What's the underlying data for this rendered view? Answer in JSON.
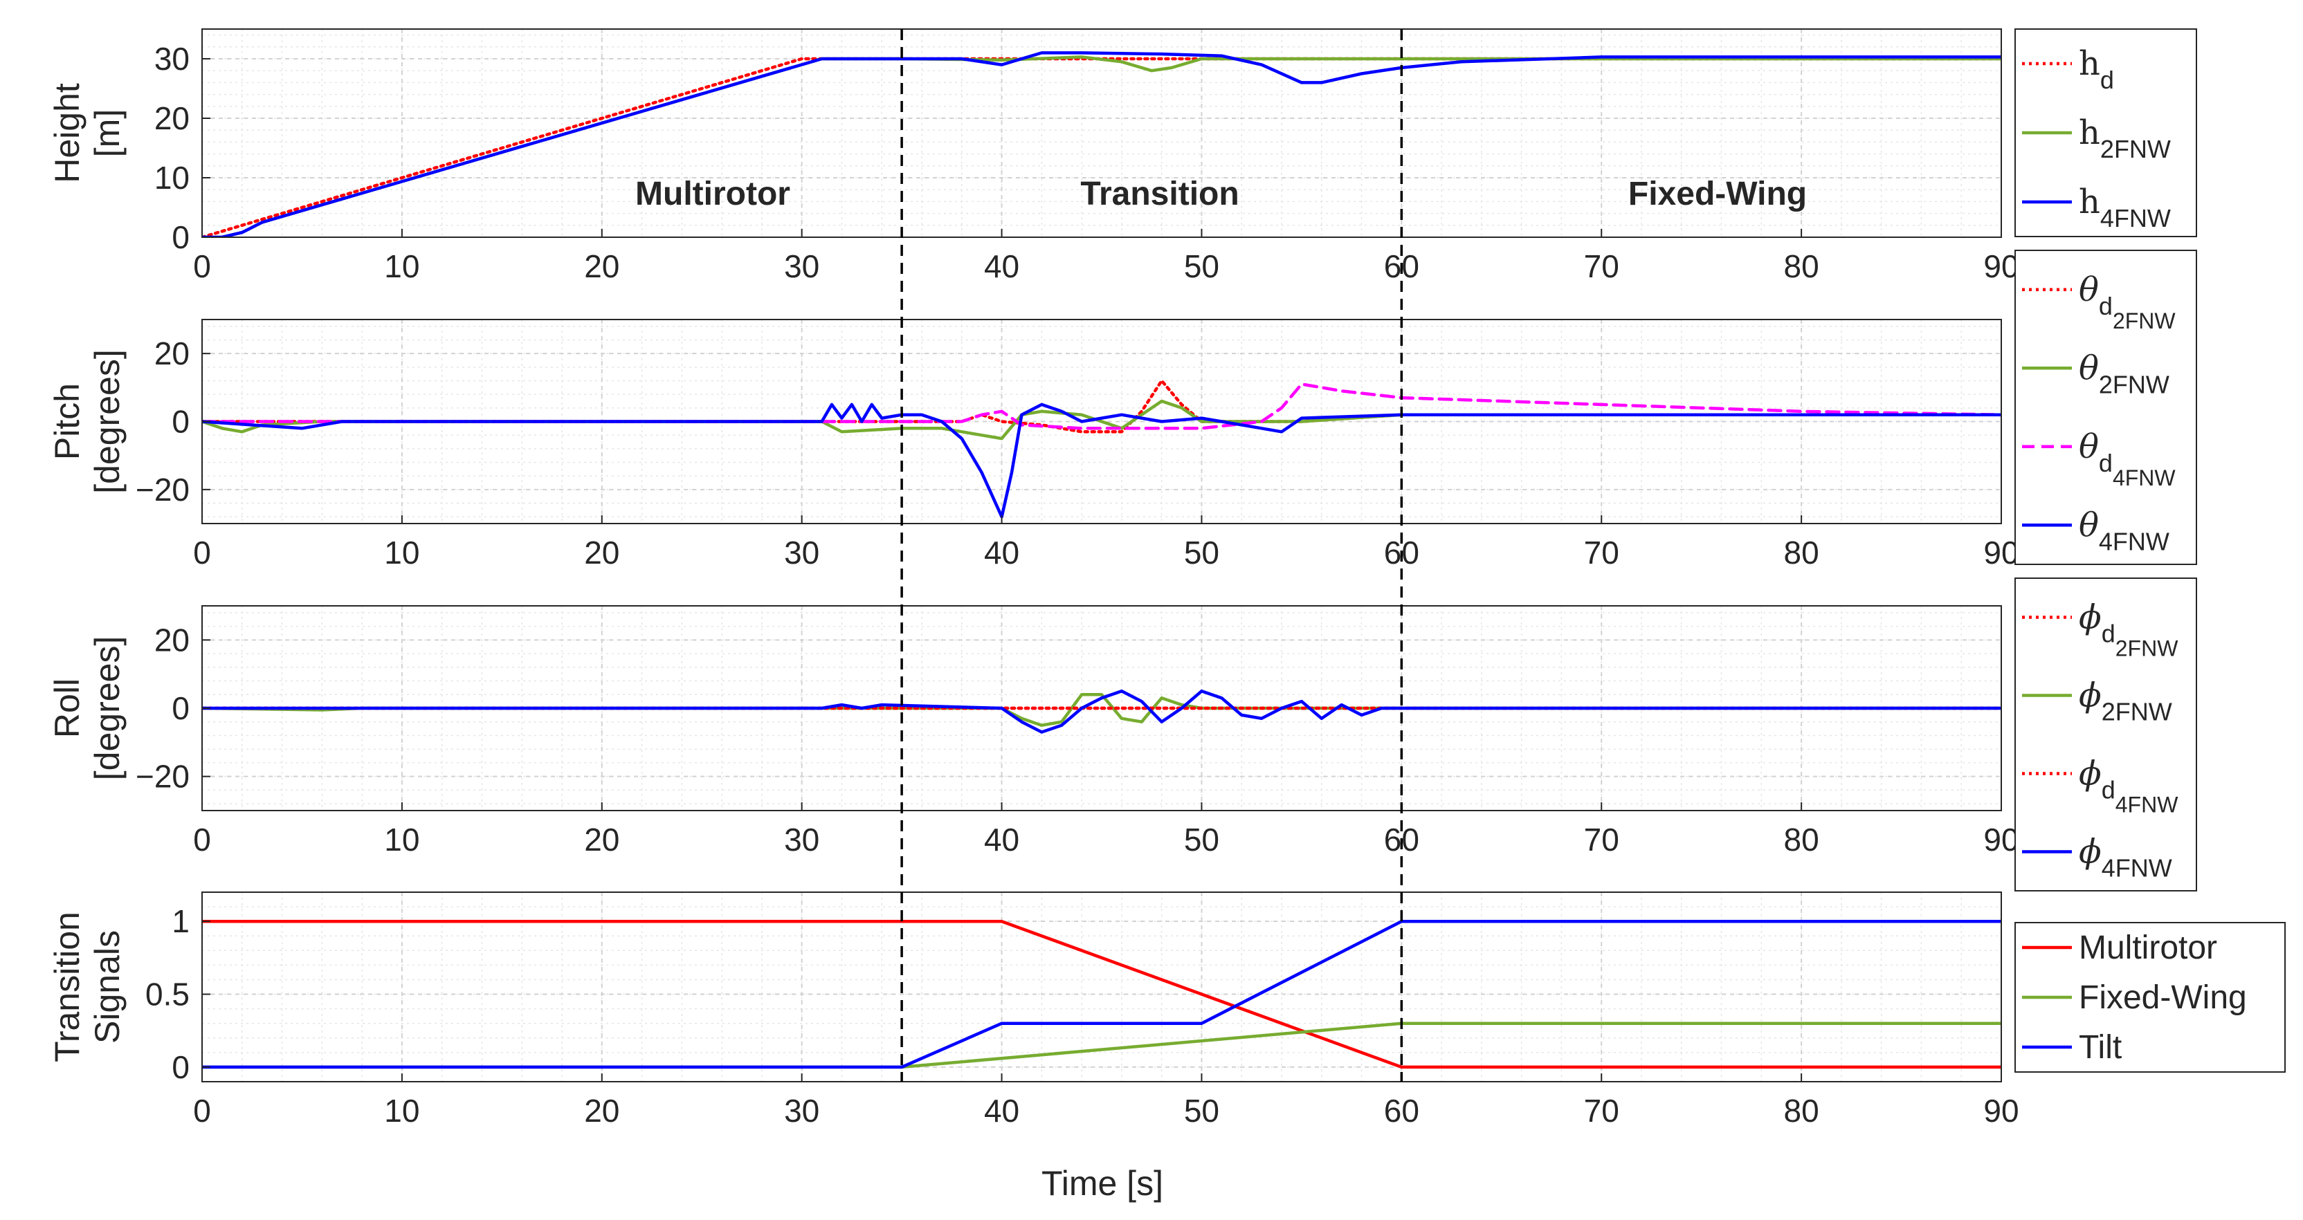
{
  "xlabel": "Time [s]",
  "phase_labels": [
    "Multirotor",
    "Transition",
    "Fixed-Wing"
  ],
  "phase_lines_at": [
    35,
    60
  ],
  "colors": {
    "red": "#ff0000",
    "green": "#77ac30",
    "blue": "#0000ff",
    "magenta": "#ff00ff"
  },
  "chart_data": [
    {
      "type": "line",
      "name": "height",
      "ylabel": [
        "Height",
        "[m]"
      ],
      "xlim": [
        0,
        90
      ],
      "ylim": [
        0,
        35
      ],
      "xticks": [
        0,
        10,
        20,
        30,
        40,
        50,
        60,
        70,
        80,
        90
      ],
      "yticks": [
        0,
        10,
        20,
        30
      ],
      "grid": true,
      "legend": {
        "position": "right",
        "entries": [
          {
            "base": "h",
            "sub": "d",
            "greek": false,
            "color": "#ff0000",
            "style": "dotted"
          },
          {
            "base": "h",
            "sub": "2FNW",
            "greek": false,
            "color": "#77ac30",
            "style": "solid"
          },
          {
            "base": "h",
            "sub": "4FNW",
            "greek": false,
            "color": "#0000ff",
            "style": "solid"
          }
        ]
      },
      "series": [
        {
          "name": "h_d",
          "color": "#ff0000",
          "style": "dotted",
          "points": [
            [
              0,
              0
            ],
            [
              30,
              30
            ],
            [
              40,
              30
            ],
            [
              45,
              30
            ],
            [
              50,
              30
            ],
            [
              55,
              30
            ],
            [
              60,
              30
            ],
            [
              90,
              30
            ]
          ]
        },
        {
          "name": "h_2FNW",
          "color": "#77ac30",
          "style": "solid",
          "points": [
            [
              0,
              0
            ],
            [
              1,
              0
            ],
            [
              2,
              0.8
            ],
            [
              3,
              2.5
            ],
            [
              31,
              30
            ],
            [
              35,
              30
            ],
            [
              40,
              29.8
            ],
            [
              44,
              30.3
            ],
            [
              46,
              29.5
            ],
            [
              47.5,
              28
            ],
            [
              48.5,
              28.5
            ],
            [
              50,
              30
            ],
            [
              52,
              30
            ],
            [
              90,
              30
            ]
          ]
        },
        {
          "name": "h_4FNW",
          "color": "#0000ff",
          "style": "solid",
          "points": [
            [
              0,
              0
            ],
            [
              1,
              0
            ],
            [
              2,
              0.8
            ],
            [
              3,
              2.5
            ],
            [
              31,
              30
            ],
            [
              35,
              30
            ],
            [
              38,
              30
            ],
            [
              40,
              29
            ],
            [
              41,
              30
            ],
            [
              42,
              31
            ],
            [
              44,
              31
            ],
            [
              48,
              30.8
            ],
            [
              51,
              30.5
            ],
            [
              53,
              29
            ],
            [
              55,
              26
            ],
            [
              56,
              26
            ],
            [
              58,
              27.5
            ],
            [
              60,
              28.5
            ],
            [
              63,
              29.5
            ],
            [
              70,
              30.3
            ],
            [
              90,
              30.3
            ]
          ]
        }
      ]
    },
    {
      "type": "line",
      "name": "pitch",
      "ylabel": [
        "Pitch",
        "[degrees]"
      ],
      "xlim": [
        0,
        90
      ],
      "ylim": [
        -30,
        30
      ],
      "xticks": [
        0,
        10,
        20,
        30,
        40,
        50,
        60,
        70,
        80,
        90
      ],
      "yticks": [
        -20,
        0,
        20
      ],
      "grid": true,
      "legend": {
        "position": "right",
        "entries": [
          {
            "base": "θ",
            "sub": "d",
            "sub2": "2FNW",
            "greek": true,
            "color": "#ff0000",
            "style": "dotted"
          },
          {
            "base": "θ",
            "sub": "2FNW",
            "greek": true,
            "color": "#77ac30",
            "style": "solid"
          },
          {
            "base": "θ",
            "sub": "d",
            "sub2": "4FNW",
            "greek": true,
            "color": "#ff00ff",
            "style": "dashed"
          },
          {
            "base": "θ",
            "sub": "4FNW",
            "greek": true,
            "color": "#0000ff",
            "style": "solid"
          }
        ]
      },
      "series": [
        {
          "name": "theta_d_2FNW",
          "color": "#ff0000",
          "style": "dotted",
          "points": [
            [
              0,
              0
            ],
            [
              35,
              0
            ],
            [
              38,
              0
            ],
            [
              39,
              2
            ],
            [
              40,
              0
            ],
            [
              42,
              -1
            ],
            [
              44,
              -3
            ],
            [
              46,
              -3
            ],
            [
              47,
              3
            ],
            [
              48,
              12
            ],
            [
              49,
              5
            ],
            [
              50,
              0
            ],
            [
              55,
              0
            ],
            [
              60,
              2
            ],
            [
              90,
              2
            ]
          ]
        },
        {
          "name": "theta_2FNW",
          "color": "#77ac30",
          "style": "solid",
          "points": [
            [
              0,
              0
            ],
            [
              1,
              -2
            ],
            [
              2,
              -3
            ],
            [
              3,
              -1
            ],
            [
              6,
              0
            ],
            [
              31,
              0
            ],
            [
              32,
              -3
            ],
            [
              35,
              -2
            ],
            [
              37,
              -2
            ],
            [
              39,
              -4
            ],
            [
              40,
              -5
            ],
            [
              41,
              2
            ],
            [
              42,
              3
            ],
            [
              44,
              2
            ],
            [
              46,
              -2
            ],
            [
              47,
              2
            ],
            [
              48,
              6
            ],
            [
              49,
              4
            ],
            [
              50,
              0
            ],
            [
              55,
              0
            ],
            [
              60,
              2
            ],
            [
              90,
              2
            ]
          ]
        },
        {
          "name": "theta_d_4FNW",
          "color": "#ff00ff",
          "style": "dashed",
          "points": [
            [
              0,
              0
            ],
            [
              35,
              0
            ],
            [
              38,
              0
            ],
            [
              39,
              2
            ],
            [
              40,
              3
            ],
            [
              41,
              -1
            ],
            [
              44,
              -2
            ],
            [
              50,
              -2
            ],
            [
              53,
              0
            ],
            [
              54,
              4
            ],
            [
              55,
              11
            ],
            [
              57,
              9
            ],
            [
              60,
              7
            ],
            [
              70,
              5
            ],
            [
              80,
              3
            ],
            [
              90,
              2
            ]
          ]
        },
        {
          "name": "theta_4FNW",
          "color": "#0000ff",
          "style": "solid",
          "points": [
            [
              0,
              0
            ],
            [
              5,
              -2
            ],
            [
              7,
              0
            ],
            [
              31,
              0
            ],
            [
              31.5,
              5
            ],
            [
              32,
              1
            ],
            [
              32.5,
              5
            ],
            [
              33,
              0
            ],
            [
              33.5,
              5
            ],
            [
              34,
              1
            ],
            [
              35,
              2
            ],
            [
              36,
              2
            ],
            [
              37,
              0
            ],
            [
              38,
              -5
            ],
            [
              39,
              -15
            ],
            [
              40,
              -28
            ],
            [
              40.5,
              -15
            ],
            [
              41,
              2
            ],
            [
              42,
              5
            ],
            [
              43,
              3
            ],
            [
              44,
              0
            ],
            [
              46,
              2
            ],
            [
              48,
              0
            ],
            [
              50,
              1
            ],
            [
              53,
              -2
            ],
            [
              54,
              -3
            ],
            [
              55,
              1
            ],
            [
              60,
              2
            ],
            [
              90,
              2
            ]
          ]
        }
      ]
    },
    {
      "type": "line",
      "name": "roll",
      "ylabel": [
        "Roll",
        "[degrees]"
      ],
      "xlim": [
        0,
        90
      ],
      "ylim": [
        -30,
        30
      ],
      "xticks": [
        0,
        10,
        20,
        30,
        40,
        50,
        60,
        70,
        80,
        90
      ],
      "yticks": [
        -20,
        0,
        20
      ],
      "grid": true,
      "legend": {
        "position": "right",
        "entries": [
          {
            "base": "ϕ",
            "sub": "d",
            "sub2": "2FNW",
            "greek": true,
            "color": "#ff0000",
            "style": "dotted"
          },
          {
            "base": "ϕ",
            "sub": "2FNW",
            "greek": true,
            "color": "#77ac30",
            "style": "solid"
          },
          {
            "base": "ϕ",
            "sub": "d",
            "sub2": "4FNW",
            "greek": true,
            "color": "#ff0000",
            "style": "dotted"
          },
          {
            "base": "ϕ",
            "sub": "4FNW",
            "greek": true,
            "color": "#0000ff",
            "style": "solid"
          }
        ]
      },
      "series": [
        {
          "name": "phi_d_2FNW",
          "color": "#ff0000",
          "style": "dotted",
          "points": [
            [
              0,
              0
            ],
            [
              90,
              0
            ]
          ]
        },
        {
          "name": "phi_2FNW",
          "color": "#77ac30",
          "style": "solid",
          "points": [
            [
              0,
              0
            ],
            [
              6,
              -0.5
            ],
            [
              8,
              0
            ],
            [
              35,
              0
            ],
            [
              40,
              0
            ],
            [
              41,
              -3
            ],
            [
              42,
              -5
            ],
            [
              43,
              -4
            ],
            [
              44,
              4
            ],
            [
              45,
              4
            ],
            [
              46,
              -3
            ],
            [
              47,
              -4
            ],
            [
              48,
              3
            ],
            [
              49,
              1
            ],
            [
              50,
              0
            ],
            [
              90,
              0
            ]
          ]
        },
        {
          "name": "phi_d_4FNW",
          "color": "#ff0000",
          "style": "dotted",
          "points": [
            [
              0,
              0
            ],
            [
              90,
              0
            ]
          ]
        },
        {
          "name": "phi_4FNW",
          "color": "#0000ff",
          "style": "solid",
          "points": [
            [
              0,
              0
            ],
            [
              31,
              0
            ],
            [
              32,
              1
            ],
            [
              33,
              0
            ],
            [
              34,
              1
            ],
            [
              40,
              0
            ],
            [
              41,
              -4
            ],
            [
              42,
              -7
            ],
            [
              43,
              -5
            ],
            [
              44,
              0
            ],
            [
              45,
              3
            ],
            [
              46,
              5
            ],
            [
              47,
              2
            ],
            [
              48,
              -4
            ],
            [
              49,
              0
            ],
            [
              50,
              5
            ],
            [
              51,
              3
            ],
            [
              52,
              -2
            ],
            [
              53,
              -3
            ],
            [
              54,
              0
            ],
            [
              55,
              2
            ],
            [
              56,
              -3
            ],
            [
              57,
              1
            ],
            [
              58,
              -2
            ],
            [
              59,
              0
            ],
            [
              60,
              0
            ],
            [
              90,
              0
            ]
          ]
        }
      ]
    },
    {
      "type": "line",
      "name": "transition",
      "ylabel": [
        "Transition",
        "Signals"
      ],
      "xlim": [
        0,
        90
      ],
      "ylim": [
        -0.1,
        1.2
      ],
      "xticks": [
        0,
        10,
        20,
        30,
        40,
        50,
        60,
        70,
        80,
        90
      ],
      "yticks": [
        0,
        0.5,
        1
      ],
      "grid": true,
      "legend": {
        "position": "right",
        "entries": [
          {
            "label": "Multirotor",
            "color": "#ff0000",
            "style": "solid"
          },
          {
            "label": "Fixed-Wing",
            "color": "#77ac30",
            "style": "solid"
          },
          {
            "label": "Tilt",
            "color": "#0000ff",
            "style": "solid"
          }
        ]
      },
      "series": [
        {
          "name": "Multirotor",
          "color": "#ff0000",
          "style": "solid",
          "points": [
            [
              0,
              1
            ],
            [
              40,
              1
            ],
            [
              60,
              0
            ],
            [
              90,
              0
            ]
          ]
        },
        {
          "name": "Fixed-Wing",
          "color": "#77ac30",
          "style": "solid",
          "points": [
            [
              0,
              0
            ],
            [
              35,
              0
            ],
            [
              60,
              0.3
            ],
            [
              90,
              0.3
            ]
          ]
        },
        {
          "name": "Tilt",
          "color": "#0000ff",
          "style": "solid",
          "points": [
            [
              0,
              0
            ],
            [
              35,
              0
            ],
            [
              40,
              0.3
            ],
            [
              50,
              0.3
            ],
            [
              60,
              1
            ],
            [
              90,
              1
            ]
          ]
        }
      ]
    }
  ]
}
